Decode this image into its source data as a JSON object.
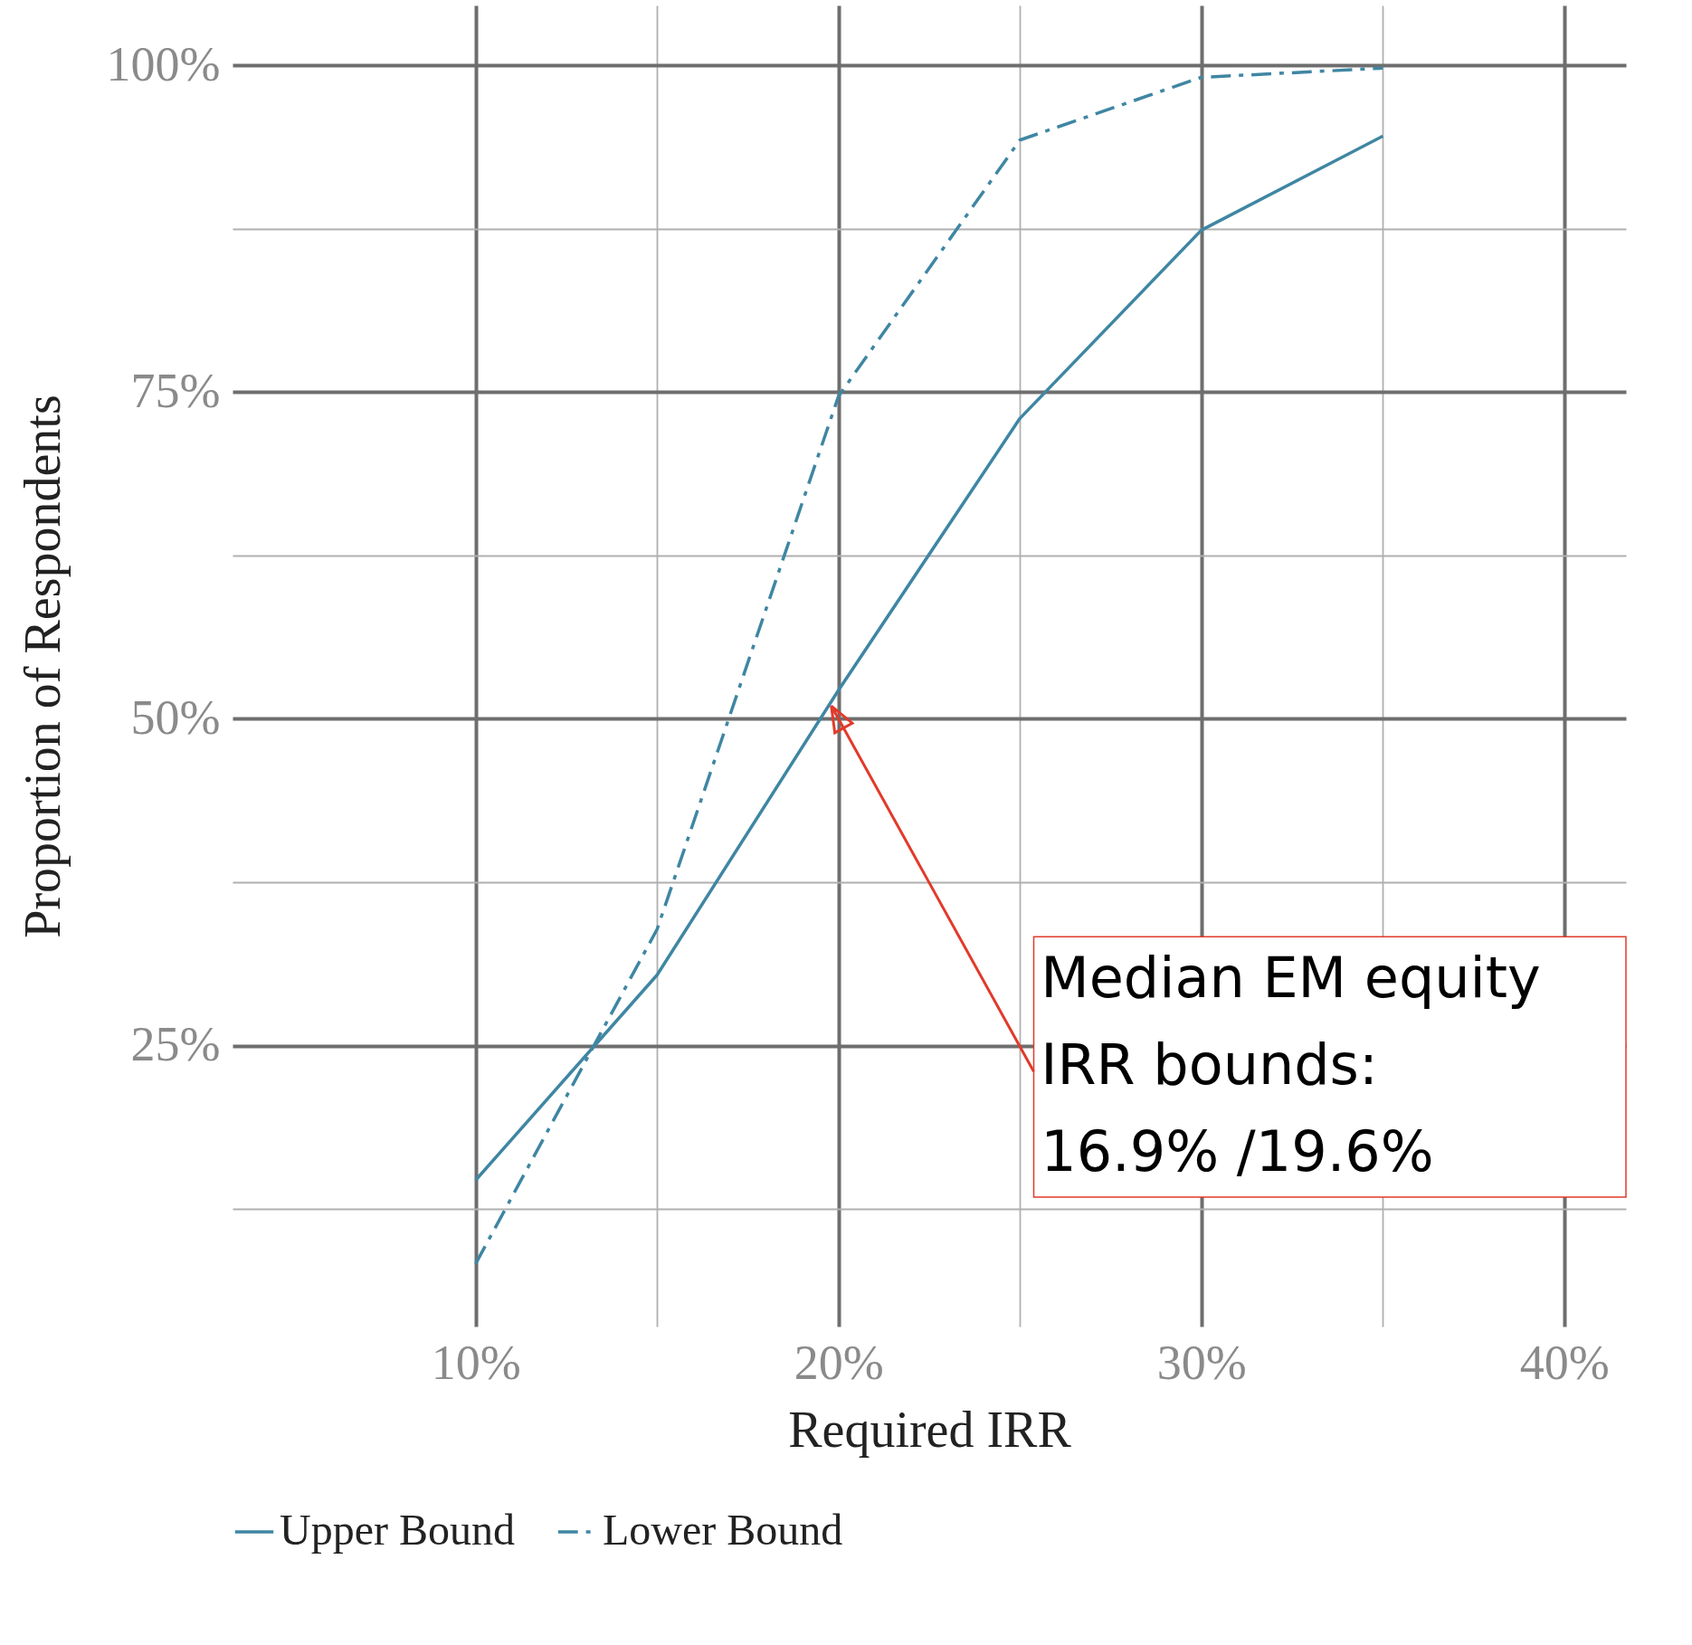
{
  "chart_data": {
    "type": "line",
    "xlabel": "Required IRR",
    "ylabel": "Proportion of Respondents",
    "x": [
      10,
      15,
      20,
      25,
      30,
      35
    ],
    "series": [
      {
        "name": "Upper Bound",
        "color": "#3f86a3",
        "line_style": "solid",
        "values": [
          14.7,
          30.4,
          52.2,
          73.0,
          87.4,
          94.6
        ]
      },
      {
        "name": "Lower Bound",
        "color": "#3f86a3",
        "line_style": "dashdot",
        "values": [
          8.3,
          33.9,
          74.7,
          94.3,
          99.1,
          99.8
        ]
      }
    ],
    "xlim": [
      3.3,
      41.7
    ],
    "ylim": [
      3.5,
      104.6
    ],
    "xticks": [
      {
        "value": 10,
        "label": "10%"
      },
      {
        "value": 15,
        "label": null
      },
      {
        "value": 20,
        "label": "20%"
      },
      {
        "value": 25,
        "label": null
      },
      {
        "value": 30,
        "label": "30%"
      },
      {
        "value": 35,
        "label": null
      },
      {
        "value": 40,
        "label": "40%"
      }
    ],
    "yticks": [
      {
        "value": 12.5,
        "label": null
      },
      {
        "value": 25,
        "label": "25%"
      },
      {
        "value": 37.5,
        "label": null
      },
      {
        "value": 50,
        "label": "50%"
      },
      {
        "value": 62.5,
        "label": null
      },
      {
        "value": 75,
        "label": "75%"
      },
      {
        "value": 87.5,
        "label": null
      },
      {
        "value": 100,
        "label": "100%"
      }
    ],
    "grid": true,
    "legend": "bottom",
    "marker": "none",
    "annotations": [
      {
        "text": "Median EM equity\nIRR bounds:\n16.9% /19.6%",
        "x": 19.8,
        "y": 51
      }
    ]
  }
}
